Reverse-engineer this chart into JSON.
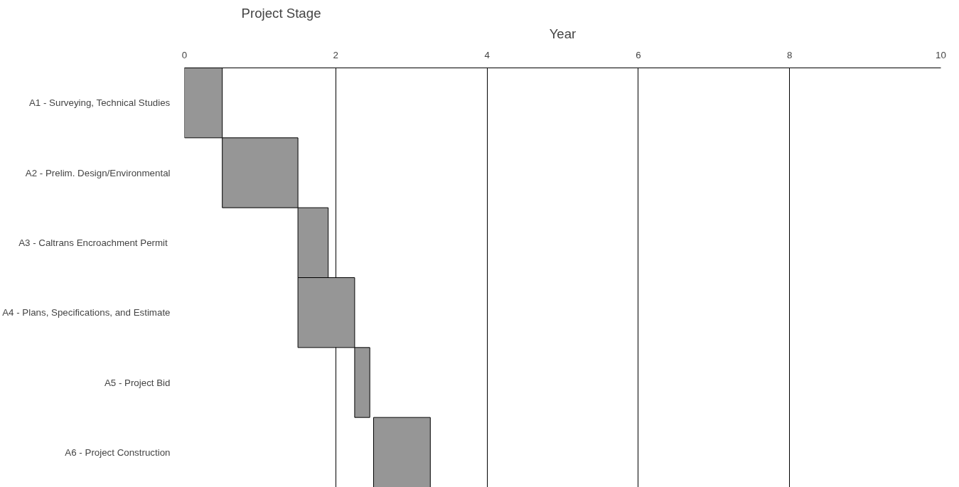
{
  "chart_data": {
    "type": "bar",
    "orientation": "horizontal",
    "xlabel": "Year",
    "ylabel": "Project Stage",
    "categories": [
      "A1 - Surveying, Technical Studies",
      "A2 - Prelim. Design/Environmental",
      "A3 - Caltrans  Encroachment Permit",
      "A4 - Plans, Specifications, and Estimate",
      "A5 - Project Bid",
      "A6 - Project Construction"
    ],
    "base": [
      0,
      0.5,
      1.5,
      1.5,
      2.25,
      2.5
    ],
    "values": [
      0.5,
      1.0,
      0.4,
      0.75,
      0.2,
      0.75
    ],
    "color": "#969696",
    "xlim": [
      0,
      10
    ],
    "xticks": [
      0,
      2,
      4,
      6,
      8,
      10
    ],
    "grid": "x"
  }
}
